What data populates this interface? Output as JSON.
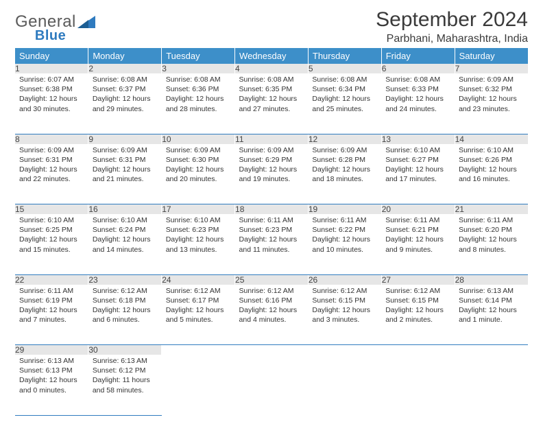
{
  "logo": {
    "text1": "General",
    "text2": "Blue"
  },
  "title": "September 2024",
  "location": "Parbhani, Maharashtra, India",
  "dayHeaders": [
    "Sunday",
    "Monday",
    "Tuesday",
    "Wednesday",
    "Thursday",
    "Friday",
    "Saturday"
  ],
  "colors": {
    "headerBg": "#3d8fc9",
    "headerText": "#ffffff",
    "dayNumBg": "#e6e6e6",
    "rule": "#2f7bbf",
    "logoBlue": "#2f7bbf",
    "logoGray": "#5a5a5a",
    "text": "#333333",
    "pageBg": "#ffffff"
  },
  "typography": {
    "titleSize": 30,
    "locationSize": 16,
    "logoSize": 24,
    "headerSize": 13,
    "dayNumSize": 12,
    "cellSize": 10.5
  },
  "weeks": [
    [
      {
        "n": "1",
        "sr": "Sunrise: 6:07 AM",
        "ss": "Sunset: 6:38 PM",
        "d1": "Daylight: 12 hours",
        "d2": "and 30 minutes."
      },
      {
        "n": "2",
        "sr": "Sunrise: 6:08 AM",
        "ss": "Sunset: 6:37 PM",
        "d1": "Daylight: 12 hours",
        "d2": "and 29 minutes."
      },
      {
        "n": "3",
        "sr": "Sunrise: 6:08 AM",
        "ss": "Sunset: 6:36 PM",
        "d1": "Daylight: 12 hours",
        "d2": "and 28 minutes."
      },
      {
        "n": "4",
        "sr": "Sunrise: 6:08 AM",
        "ss": "Sunset: 6:35 PM",
        "d1": "Daylight: 12 hours",
        "d2": "and 27 minutes."
      },
      {
        "n": "5",
        "sr": "Sunrise: 6:08 AM",
        "ss": "Sunset: 6:34 PM",
        "d1": "Daylight: 12 hours",
        "d2": "and 25 minutes."
      },
      {
        "n": "6",
        "sr": "Sunrise: 6:08 AM",
        "ss": "Sunset: 6:33 PM",
        "d1": "Daylight: 12 hours",
        "d2": "and 24 minutes."
      },
      {
        "n": "7",
        "sr": "Sunrise: 6:09 AM",
        "ss": "Sunset: 6:32 PM",
        "d1": "Daylight: 12 hours",
        "d2": "and 23 minutes."
      }
    ],
    [
      {
        "n": "8",
        "sr": "Sunrise: 6:09 AM",
        "ss": "Sunset: 6:31 PM",
        "d1": "Daylight: 12 hours",
        "d2": "and 22 minutes."
      },
      {
        "n": "9",
        "sr": "Sunrise: 6:09 AM",
        "ss": "Sunset: 6:31 PM",
        "d1": "Daylight: 12 hours",
        "d2": "and 21 minutes."
      },
      {
        "n": "10",
        "sr": "Sunrise: 6:09 AM",
        "ss": "Sunset: 6:30 PM",
        "d1": "Daylight: 12 hours",
        "d2": "and 20 minutes."
      },
      {
        "n": "11",
        "sr": "Sunrise: 6:09 AM",
        "ss": "Sunset: 6:29 PM",
        "d1": "Daylight: 12 hours",
        "d2": "and 19 minutes."
      },
      {
        "n": "12",
        "sr": "Sunrise: 6:09 AM",
        "ss": "Sunset: 6:28 PM",
        "d1": "Daylight: 12 hours",
        "d2": "and 18 minutes."
      },
      {
        "n": "13",
        "sr": "Sunrise: 6:10 AM",
        "ss": "Sunset: 6:27 PM",
        "d1": "Daylight: 12 hours",
        "d2": "and 17 minutes."
      },
      {
        "n": "14",
        "sr": "Sunrise: 6:10 AM",
        "ss": "Sunset: 6:26 PM",
        "d1": "Daylight: 12 hours",
        "d2": "and 16 minutes."
      }
    ],
    [
      {
        "n": "15",
        "sr": "Sunrise: 6:10 AM",
        "ss": "Sunset: 6:25 PM",
        "d1": "Daylight: 12 hours",
        "d2": "and 15 minutes."
      },
      {
        "n": "16",
        "sr": "Sunrise: 6:10 AM",
        "ss": "Sunset: 6:24 PM",
        "d1": "Daylight: 12 hours",
        "d2": "and 14 minutes."
      },
      {
        "n": "17",
        "sr": "Sunrise: 6:10 AM",
        "ss": "Sunset: 6:23 PM",
        "d1": "Daylight: 12 hours",
        "d2": "and 13 minutes."
      },
      {
        "n": "18",
        "sr": "Sunrise: 6:11 AM",
        "ss": "Sunset: 6:23 PM",
        "d1": "Daylight: 12 hours",
        "d2": "and 11 minutes."
      },
      {
        "n": "19",
        "sr": "Sunrise: 6:11 AM",
        "ss": "Sunset: 6:22 PM",
        "d1": "Daylight: 12 hours",
        "d2": "and 10 minutes."
      },
      {
        "n": "20",
        "sr": "Sunrise: 6:11 AM",
        "ss": "Sunset: 6:21 PM",
        "d1": "Daylight: 12 hours",
        "d2": "and 9 minutes."
      },
      {
        "n": "21",
        "sr": "Sunrise: 6:11 AM",
        "ss": "Sunset: 6:20 PM",
        "d1": "Daylight: 12 hours",
        "d2": "and 8 minutes."
      }
    ],
    [
      {
        "n": "22",
        "sr": "Sunrise: 6:11 AM",
        "ss": "Sunset: 6:19 PM",
        "d1": "Daylight: 12 hours",
        "d2": "and 7 minutes."
      },
      {
        "n": "23",
        "sr": "Sunrise: 6:12 AM",
        "ss": "Sunset: 6:18 PM",
        "d1": "Daylight: 12 hours",
        "d2": "and 6 minutes."
      },
      {
        "n": "24",
        "sr": "Sunrise: 6:12 AM",
        "ss": "Sunset: 6:17 PM",
        "d1": "Daylight: 12 hours",
        "d2": "and 5 minutes."
      },
      {
        "n": "25",
        "sr": "Sunrise: 6:12 AM",
        "ss": "Sunset: 6:16 PM",
        "d1": "Daylight: 12 hours",
        "d2": "and 4 minutes."
      },
      {
        "n": "26",
        "sr": "Sunrise: 6:12 AM",
        "ss": "Sunset: 6:15 PM",
        "d1": "Daylight: 12 hours",
        "d2": "and 3 minutes."
      },
      {
        "n": "27",
        "sr": "Sunrise: 6:12 AM",
        "ss": "Sunset: 6:15 PM",
        "d1": "Daylight: 12 hours",
        "d2": "and 2 minutes."
      },
      {
        "n": "28",
        "sr": "Sunrise: 6:13 AM",
        "ss": "Sunset: 6:14 PM",
        "d1": "Daylight: 12 hours",
        "d2": "and 1 minute."
      }
    ],
    [
      {
        "n": "29",
        "sr": "Sunrise: 6:13 AM",
        "ss": "Sunset: 6:13 PM",
        "d1": "Daylight: 12 hours",
        "d2": "and 0 minutes."
      },
      {
        "n": "30",
        "sr": "Sunrise: 6:13 AM",
        "ss": "Sunset: 6:12 PM",
        "d1": "Daylight: 11 hours",
        "d2": "and 58 minutes."
      },
      null,
      null,
      null,
      null,
      null
    ]
  ]
}
